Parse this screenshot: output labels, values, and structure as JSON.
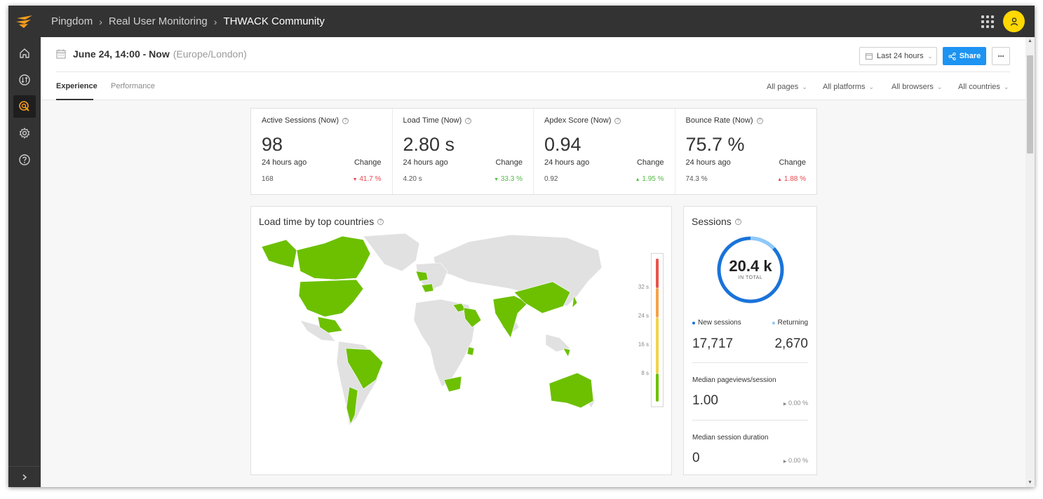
{
  "breadcrumbs": [
    "Pingdom",
    "Real User Monitoring",
    "THWACK Community"
  ],
  "user": {
    "avatar_icon": "user-icon"
  },
  "sidebar": {
    "items": [
      {
        "name": "home",
        "icon": "home-icon",
        "active": false
      },
      {
        "name": "synthetics",
        "icon": "transfer-icon",
        "active": false
      },
      {
        "name": "rum",
        "icon": "rum-icon",
        "active": true
      },
      {
        "name": "settings",
        "icon": "gear-icon",
        "active": false
      },
      {
        "name": "help",
        "icon": "help-icon",
        "active": false
      }
    ],
    "expand_icon": "chevron-right-icon"
  },
  "header": {
    "date_range": "June 24, 14:00 - Now",
    "timezone": "(Europe/London)",
    "range_button": "Last 24 hours",
    "share_button": "Share",
    "more_button": "···"
  },
  "tabs": [
    {
      "label": "Experience",
      "active": true
    },
    {
      "label": "Performance",
      "active": false
    }
  ],
  "filters": [
    "All pages",
    "All platforms",
    "All browsers",
    "All countries"
  ],
  "metrics": [
    {
      "title": "Active Sessions (Now)",
      "value": "98",
      "ago_label": "24 hours ago",
      "change_label": "Change",
      "previous": "168",
      "change": "41.7 %",
      "direction": "down",
      "color": "#e8454e"
    },
    {
      "title": "Load Time (Now)",
      "value": "2.80 s",
      "ago_label": "24 hours ago",
      "change_label": "Change",
      "previous": "4.20 s",
      "change": "33.3 %",
      "direction": "down",
      "color": "#54b948"
    },
    {
      "title": "Apdex Score (Now)",
      "value": "0.94",
      "ago_label": "24 hours ago",
      "change_label": "Change",
      "previous": "0.92",
      "change": "1.95 %",
      "direction": "up",
      "color": "#54b948"
    },
    {
      "title": "Bounce Rate (Now)",
      "value": "75.7 %",
      "ago_label": "24 hours ago",
      "change_label": "Change",
      "previous": "74.3 %",
      "change": "1.88 %",
      "direction": "up",
      "color": "#e8454e"
    }
  ],
  "map_panel": {
    "title": "Load time by top countries",
    "scale_ticks": [
      "32 s",
      "24 s",
      "16 s",
      "8 s"
    ],
    "scale_colors": [
      "#e8544b",
      "#f4a24a",
      "#f2d34c",
      "#6cc000"
    ],
    "highlight_color": "#6cc000",
    "base_color": "#e1e1e1"
  },
  "sessions_panel": {
    "title": "Sessions",
    "total": "20.4 k",
    "total_sub": "IN TOTAL",
    "returning_fraction": 0.131,
    "new_label": "New sessions",
    "new_value": "17,717",
    "new_color": "#1a73d9",
    "returning_label": "Returning",
    "returning_value": "2,670",
    "returning_color": "#8ec9fb",
    "pageviews_label": "Median pageviews/session",
    "pageviews_value": "1.00",
    "pageviews_change": "0.00 %",
    "duration_label": "Median session duration",
    "duration_value": "0",
    "duration_change": "0.00 %"
  }
}
